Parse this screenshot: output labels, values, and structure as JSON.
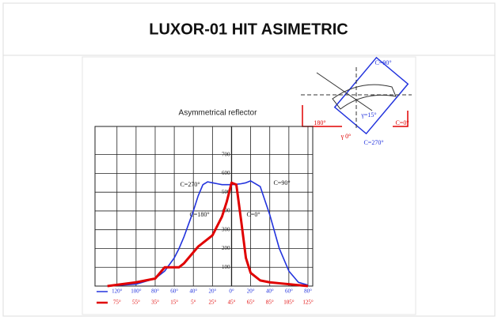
{
  "page_title": "LUXOR-01 HIT ASIMETRIC",
  "icon_labels": [
    "C=90°",
    "C=0°",
    "C=270°",
    "180°",
    "γ=15°",
    "γ 0°"
  ],
  "chart_data": {
    "type": "line",
    "title": "Asymmetrical reflector",
    "annotations": [
      "C=270°",
      "C=90°",
      "C=180°",
      "C=0°"
    ],
    "x": [
      -130,
      -100,
      -80,
      -70,
      -60,
      -55,
      -50,
      -45,
      -40,
      -35,
      -30,
      -25,
      -20,
      -15,
      -10,
      -5,
      0,
      5,
      10,
      15,
      20,
      30,
      40,
      50,
      60,
      70,
      80
    ],
    "series": [
      {
        "color": "#2233dd",
        "values": [
          0,
          10,
          40,
          80,
          150,
          200,
          260,
          330,
          400,
          480,
          540,
          555,
          550,
          545,
          540,
          540,
          540,
          542,
          545,
          550,
          560,
          530,
          380,
          200,
          80,
          20,
          5
        ]
      },
      {
        "color": "#e00000",
        "values": [
          0,
          20,
          40,
          100,
          100,
          100,
          120,
          150,
          180,
          210,
          230,
          250,
          270,
          320,
          370,
          450,
          550,
          540,
          350,
          150,
          70,
          30,
          20,
          15,
          10,
          5,
          0
        ]
      }
    ],
    "xlim": [
      -143,
      85
    ],
    "ylim": [
      0,
      850
    ],
    "xticks": [
      {
        "value": -120,
        "label": "120°"
      },
      {
        "value": -100,
        "label": "100°"
      },
      {
        "value": -80,
        "label": "80°"
      },
      {
        "value": -60,
        "label": "60°"
      },
      {
        "value": -40,
        "label": "40°"
      },
      {
        "value": -20,
        "label": "20°"
      },
      {
        "value": 0,
        "label": "0°"
      },
      {
        "value": 20,
        "label": "20°"
      },
      {
        "value": 40,
        "label": "40°"
      },
      {
        "value": 60,
        "label": "60°"
      },
      {
        "value": 80,
        "label": "80°"
      }
    ],
    "x2lim": [
      -98,
      130
    ],
    "x2ticks": [
      {
        "value": -75,
        "label": "75°"
      },
      {
        "value": -55,
        "label": "55°"
      },
      {
        "value": -35,
        "label": "35°"
      },
      {
        "value": -15,
        "label": "15°"
      },
      {
        "value": 5,
        "label": "5°"
      },
      {
        "value": 25,
        "label": "25°"
      },
      {
        "value": 45,
        "label": "45°"
      },
      {
        "value": 65,
        "label": "65°"
      },
      {
        "value": 85,
        "label": "85°"
      },
      {
        "value": 105,
        "label": "105°"
      },
      {
        "value": 125,
        "label": "125°"
      }
    ],
    "yticks": [
      100,
      200,
      300,
      400,
      500,
      600,
      700
    ],
    "grid": true
  }
}
